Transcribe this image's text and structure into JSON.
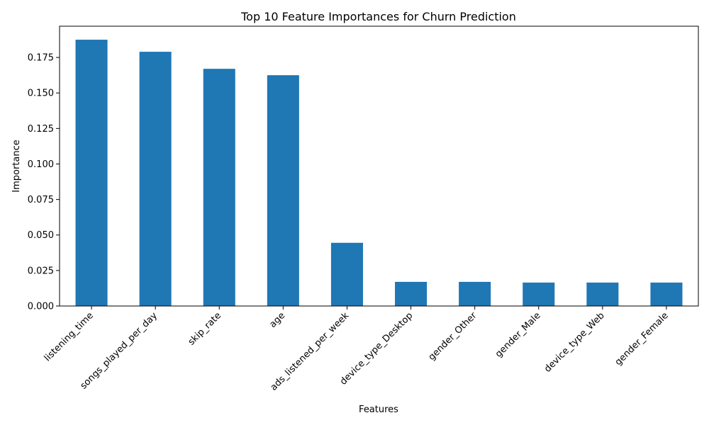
{
  "chart_data": {
    "type": "bar",
    "title": "Top 10 Feature Importances for Churn Prediction",
    "xlabel": "Features",
    "ylabel": "Importance",
    "categories": [
      "listening_time",
      "songs_played_per_day",
      "skip_rate",
      "age",
      "ads_listened_per_week",
      "device_type_Desktop",
      "gender_Other",
      "gender_Male",
      "device_type_Web",
      "gender_Female"
    ],
    "values": [
      0.1875,
      0.179,
      0.167,
      0.1625,
      0.0445,
      0.017,
      0.017,
      0.0165,
      0.0165,
      0.0165
    ],
    "ylim": [
      0,
      0.197
    ],
    "yticks": [
      0.0,
      0.025,
      0.05,
      0.075,
      0.1,
      0.125,
      0.15,
      0.175
    ],
    "ytick_labels": [
      "0.000",
      "0.025",
      "0.050",
      "0.075",
      "0.100",
      "0.125",
      "0.150",
      "0.175"
    ],
    "bar_color": "#1f77b4",
    "grid": false,
    "legend": "none"
  }
}
